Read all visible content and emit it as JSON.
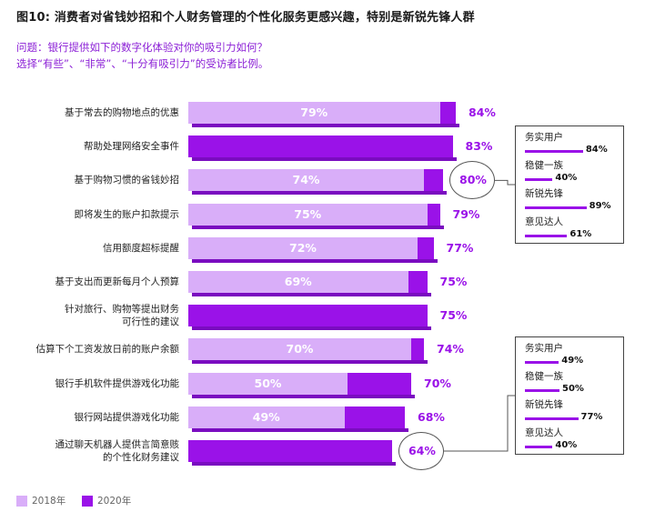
{
  "title": "图10: 消费者对省钱妙招和个人财务管理的个性化服务更感兴趣，特别是新锐先锋人群",
  "question_line1": "问题：银行提供如下的数字化体验对你的吸引力如何？",
  "question_line2": "选择“有些”、“非常”、“十分有吸引力”的受访者比例。",
  "legend": [
    {
      "name": "2018年",
      "color": "#d9aef9"
    },
    {
      "name": "2020年",
      "color": "#9a12e8"
    }
  ],
  "chart_data": {
    "type": "bar",
    "orientation": "horizontal",
    "categories": [
      [
        "基于常去的购物地点的优惠"
      ],
      [
        "帮助处理网络安全事件"
      ],
      [
        "基于购物习惯的省钱妙招"
      ],
      [
        "即将发生的账户扣款提示"
      ],
      [
        "信用额度超标提醒"
      ],
      [
        "基于支出而更新每月个人预算"
      ],
      [
        "针对旅行、购物等提出财务",
        "可行性的建议"
      ],
      [
        "估算下个工资发放日前的账户余额"
      ],
      [
        "银行手机软件提供游戏化功能"
      ],
      [
        "银行网站提供游戏化功能"
      ],
      [
        "通过聊天机器人提供言简意赅",
        "的个性化财务建议"
      ]
    ],
    "series": [
      {
        "name": "2018年",
        "values": [
          79,
          null,
          74,
          75,
          72,
          69,
          null,
          70,
          50,
          49,
          null
        ],
        "labels": [
          "79%",
          "",
          "74%",
          "75%",
          "72%",
          "69%",
          "",
          "70%",
          "50%",
          "49%",
          ""
        ]
      },
      {
        "name": "2020年",
        "values": [
          84,
          83,
          80,
          79,
          77,
          75,
          75,
          74,
          70,
          68,
          64
        ],
        "labels": [
          "84%",
          "83%",
          "80%",
          "79%",
          "77%",
          "75%",
          "75%",
          "74%",
          "70%",
          "68%",
          "64%"
        ]
      }
    ],
    "circled": [
      2,
      10
    ],
    "breakouts": [
      {
        "row": 2,
        "items": [
          {
            "name": "务实用户",
            "value": 84,
            "label": "84%"
          },
          {
            "name": "稳健一族",
            "value": 40,
            "label": "40%"
          },
          {
            "name": "新锐先锋",
            "value": 89,
            "label": "89%"
          },
          {
            "name": "意见达人",
            "value": 61,
            "label": "61%"
          }
        ]
      },
      {
        "row": 10,
        "items": [
          {
            "name": "务实用户",
            "value": 49,
            "label": "49%"
          },
          {
            "name": "稳健一族",
            "value": 50,
            "label": "50%"
          },
          {
            "name": "新锐先锋",
            "value": 77,
            "label": "77%"
          },
          {
            "name": "意见达人",
            "value": 40,
            "label": "40%"
          }
        ]
      }
    ],
    "xlim": [
      0,
      100
    ],
    "grid": false,
    "legend_position": "bottom-left"
  }
}
